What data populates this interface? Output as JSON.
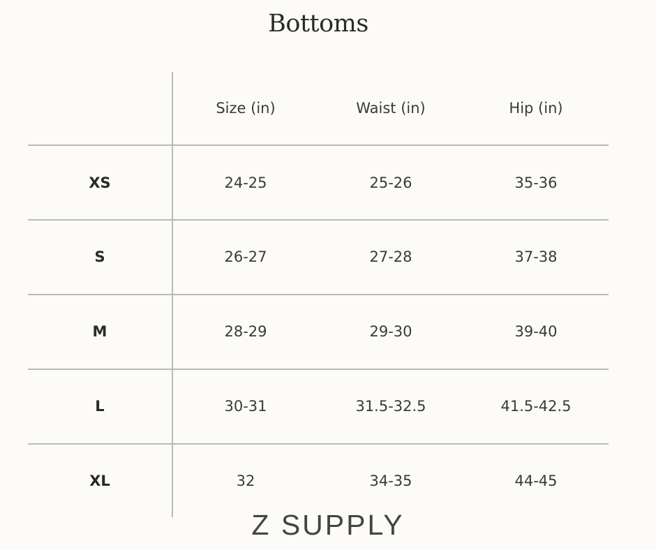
{
  "title": "Bottoms",
  "table": {
    "headers": [
      "",
      "Size (in)",
      "Waist (in)",
      "Hip (in)"
    ],
    "rows": [
      {
        "label": "XS",
        "size": "24-25",
        "waist": "25-26",
        "hip": "35-36"
      },
      {
        "label": "S",
        "size": "26-27",
        "waist": "27-28",
        "hip": "37-38"
      },
      {
        "label": "M",
        "size": "28-29",
        "waist": "29-30",
        "hip": "39-40"
      },
      {
        "label": "L",
        "size": "30-31",
        "waist": "31.5-32.5",
        "hip": "41.5-42.5"
      },
      {
        "label": "XL",
        "size": "32",
        "waist": "34-35",
        "hip": "44-45"
      }
    ]
  },
  "logo": "Z SUPPLY",
  "colors": {
    "background": "#fcfbf7",
    "gridline": "#b9b9b9",
    "text": "#3a3a3a"
  }
}
